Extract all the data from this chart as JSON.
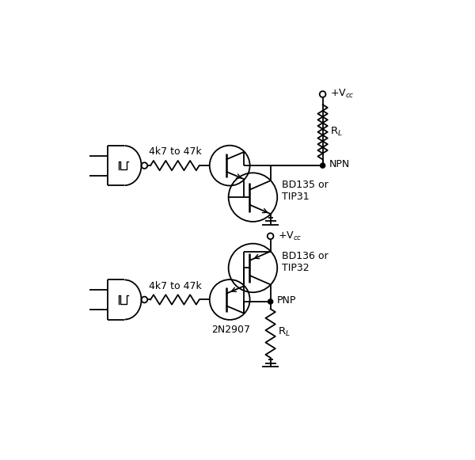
{
  "bg_color": "#ffffff",
  "line_color": "#000000",
  "figsize": [
    6.0,
    5.81
  ],
  "dpi": 100,
  "labels": {
    "vcc_top": "+V$_{cc}$",
    "rl_top": "R$_L$",
    "npn": "NPN",
    "bd135": "BD135 or\nTIP31",
    "resistor_top": "4k7 to 47k",
    "vcc_bot": "+V$_{cc}$",
    "rl_bot": "R$_L$",
    "pnp": "PNP",
    "bd136": "BD136 or\nTIP32",
    "resistor_bot": "4k7 to 47k",
    "t3_label": "2N2907"
  }
}
